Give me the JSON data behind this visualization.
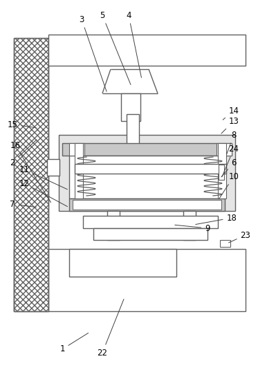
{
  "fig_width": 3.73,
  "fig_height": 5.35,
  "dpi": 100,
  "bg_color": "#ffffff",
  "lc": "#606060",
  "lc_dark": "#404040"
}
